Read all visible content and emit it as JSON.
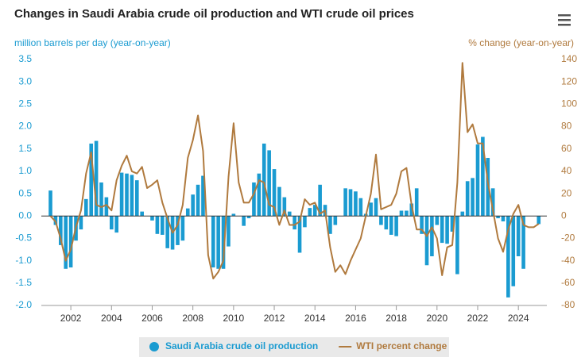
{
  "chart_data": {
    "type": "bar",
    "title": "Changes in Saudi Arabia crude oil production and WTI crude oil prices",
    "y_axis_label": "million barrels per day (year-on-year)",
    "y2_axis_label": "% change (year-on-year)",
    "x": [
      2001,
      2001.25,
      2001.5,
      2001.75,
      2002,
      2002.25,
      2002.5,
      2002.75,
      2003,
      2003.25,
      2003.5,
      2003.75,
      2004,
      2004.25,
      2004.5,
      2004.75,
      2005,
      2005.25,
      2005.5,
      2005.75,
      2006,
      2006.25,
      2006.5,
      2006.75,
      2007,
      2007.25,
      2007.5,
      2007.75,
      2008,
      2008.25,
      2008.5,
      2008.75,
      2009,
      2009.25,
      2009.5,
      2009.75,
      2010,
      2010.25,
      2010.5,
      2010.75,
      2011,
      2011.25,
      2011.5,
      2011.75,
      2012,
      2012.25,
      2012.5,
      2012.75,
      2013,
      2013.25,
      2013.5,
      2013.75,
      2014,
      2014.25,
      2014.5,
      2014.75,
      2015,
      2015.25,
      2015.5,
      2015.75,
      2016,
      2016.25,
      2016.5,
      2016.75,
      2017,
      2017.25,
      2017.5,
      2017.75,
      2018,
      2018.25,
      2018.5,
      2018.75,
      2019,
      2019.25,
      2019.5,
      2019.75,
      2020,
      2020.25,
      2020.5,
      2020.75,
      2021,
      2021.25,
      2021.5,
      2021.75,
      2022,
      2022.25,
      2022.5,
      2022.75,
      2023,
      2023.25,
      2023.5,
      2023.75,
      2024,
      2024.25,
      2024.5,
      2024.75,
      2025
    ],
    "series": [
      {
        "name": "Saudi Arabia crude oil production",
        "type": "bar",
        "color": "#1a9bd1",
        "values": [
          0.57,
          -0.2,
          -0.65,
          -1.18,
          -1.15,
          -0.55,
          -0.3,
          0.38,
          1.62,
          1.68,
          0.75,
          0.42,
          -0.3,
          -0.37,
          0.97,
          0.95,
          0.92,
          0.8,
          0.1,
          0.0,
          -0.1,
          -0.4,
          -0.42,
          -0.72,
          -0.75,
          -0.65,
          -0.55,
          0.17,
          0.48,
          0.7,
          0.9,
          0.0,
          -1.15,
          -1.18,
          -1.18,
          -0.68,
          0.05,
          0.0,
          -0.22,
          -0.05,
          0.75,
          0.95,
          1.62,
          1.47,
          1.05,
          0.65,
          0.42,
          0.1,
          -0.3,
          -0.82,
          -0.25,
          0.18,
          0.25,
          0.7,
          0.25,
          -0.4,
          -0.2,
          0.0,
          0.62,
          0.6,
          0.55,
          0.4,
          0.05,
          0.3,
          0.4,
          -0.2,
          -0.3,
          -0.42,
          -0.45,
          0.12,
          0.12,
          0.28,
          0.62,
          -0.4,
          -1.1,
          -0.9,
          -0.2,
          -0.6,
          -0.62,
          -0.35,
          -1.3,
          0.1,
          0.78,
          0.85,
          1.6,
          1.77,
          1.3,
          0.62,
          -0.05,
          -0.12,
          -1.82,
          -1.57,
          -0.9,
          -1.18,
          0.0,
          0.0,
          -0.18
        ]
      },
      {
        "name": "WTI percent change",
        "type": "line",
        "axis": "y2",
        "color": "#b07a3e",
        "values": [
          0,
          -5,
          -20,
          -40,
          -30,
          -10,
          5,
          38,
          57,
          10,
          8,
          10,
          5,
          32,
          45,
          54,
          40,
          38,
          44,
          25,
          28,
          32,
          12,
          -2,
          -15,
          -8,
          10,
          52,
          68,
          90,
          58,
          -35,
          -56,
          -50,
          -40,
          35,
          83,
          30,
          12,
          12,
          20,
          32,
          30,
          10,
          8,
          -8,
          5,
          -8,
          -8,
          -5,
          15,
          10,
          12,
          2,
          5,
          -28,
          -50,
          -44,
          -52,
          -40,
          -30,
          -20,
          0,
          20,
          55,
          6,
          8,
          10,
          20,
          40,
          43,
          10,
          -12,
          -12,
          -18,
          -10,
          -20,
          -53,
          -28,
          -26,
          30,
          137,
          75,
          82,
          65,
          65,
          30,
          5,
          -20,
          -32,
          -12,
          2,
          10,
          -8,
          -10,
          -10,
          -7
        ]
      }
    ],
    "xlim": [
      2000.55,
      2025.4
    ],
    "xticks": [
      2002,
      2004,
      2006,
      2008,
      2010,
      2012,
      2014,
      2016,
      2018,
      2020,
      2022,
      2024
    ],
    "ylim": [
      -2.0,
      3.5
    ],
    "yticks": [
      {
        "value": -2,
        "label": "-2.0"
      },
      -1.5,
      {
        "value": -1,
        "label": "-1.0"
      },
      -0.5,
      {
        "value": 0,
        "label": "0.0"
      },
      0.5,
      {
        "value": 1,
        "label": "1.0"
      },
      1.5,
      {
        "value": 2,
        "label": "2.0"
      },
      2.5,
      {
        "value": 3,
        "label": "3.0"
      },
      3.5
    ],
    "y2lim": [
      -80,
      140
    ],
    "y2ticks": [
      -80,
      -60,
      -40,
      -20,
      0,
      20,
      40,
      60,
      80,
      100,
      120,
      140
    ],
    "grid": false,
    "legend": "bottom"
  }
}
